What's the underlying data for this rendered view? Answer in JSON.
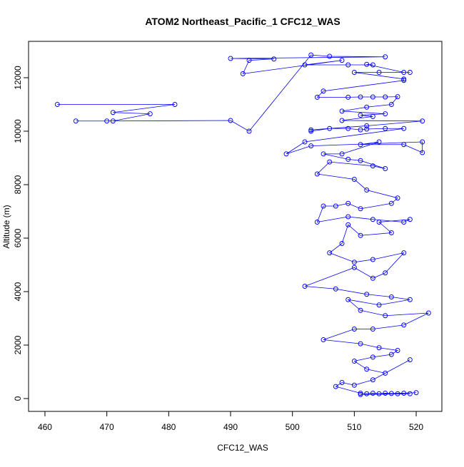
{
  "chart_data": {
    "type": "line",
    "title": "ATOM2 Northeast_Pacific_1 CFC12_WAS",
    "x_label": "CFC12_WAS",
    "y_label": "Altitude (m)",
    "color": "#0000ff",
    "markers": "open-circle",
    "x": [
      462,
      481,
      471,
      477,
      471,
      465,
      470,
      490,
      493,
      503,
      506,
      515,
      490,
      497,
      493,
      492,
      508,
      502,
      509,
      513,
      512,
      518,
      519,
      514,
      510,
      518,
      518,
      505,
      504,
      509,
      511,
      513,
      515,
      517,
      516,
      512,
      508,
      515,
      511,
      513,
      508,
      521,
      512,
      503,
      503,
      506,
      509,
      511,
      512,
      515,
      518,
      502,
      499,
      503,
      521,
      521,
      518,
      511,
      514,
      508,
      505,
      509,
      511,
      515,
      513,
      506,
      504,
      510,
      512,
      517,
      516,
      511,
      509,
      507,
      505,
      504,
      509,
      513,
      518,
      519,
      514,
      516,
      511,
      509,
      508,
      506,
      510,
      513,
      518,
      515,
      513,
      510,
      502,
      507,
      512,
      516,
      519,
      514,
      509,
      511,
      515,
      522,
      518,
      513,
      510,
      505,
      511,
      514,
      517,
      516,
      513,
      510,
      512,
      515,
      519,
      513,
      510,
      508,
      507,
      511,
      512,
      513,
      514,
      515,
      516,
      517,
      518,
      520,
      511,
      519
    ],
    "values": [
      11000,
      11000,
      10700,
      10650,
      10380,
      10380,
      10380,
      10400,
      10000,
      12850,
      12800,
      12780,
      12720,
      12700,
      12650,
      12150,
      12650,
      12480,
      12480,
      12480,
      12500,
      12200,
      12200,
      12200,
      12200,
      11950,
      11900,
      11500,
      11270,
      11270,
      11280,
      11280,
      11280,
      11290,
      11000,
      10900,
      10750,
      10650,
      10600,
      10550,
      10400,
      10380,
      10200,
      10050,
      10000,
      10100,
      10100,
      10050,
      10080,
      10100,
      10100,
      9600,
      9150,
      9450,
      9600,
      9200,
      9500,
      9500,
      9600,
      9150,
      9150,
      8950,
      8900,
      8600,
      8700,
      8850,
      8400,
      8200,
      7800,
      7500,
      7300,
      7100,
      7300,
      7200,
      7200,
      6600,
      6800,
      6700,
      6600,
      6700,
      6600,
      6200,
      6100,
      6500,
      5800,
      5450,
      5100,
      5200,
      5450,
      4700,
      4500,
      4900,
      4200,
      4100,
      3900,
      3800,
      3700,
      3500,
      3700,
      3300,
      3100,
      3200,
      2750,
      2600,
      2600,
      2200,
      2050,
      1900,
      1800,
      1650,
      1550,
      1400,
      1100,
      950,
      1450,
      700,
      500,
      600,
      450,
      200,
      180,
      200,
      180,
      200,
      190,
      180,
      200,
      220,
      150,
      180
    ],
    "xlim": [
      457.35,
      524.15
    ],
    "ylim": [
      -480,
      13360
    ],
    "xticks": [
      460,
      470,
      480,
      490,
      500,
      510,
      520
    ],
    "yticks": [
      0,
      2000,
      4000,
      6000,
      8000,
      10000,
      12000
    ]
  }
}
